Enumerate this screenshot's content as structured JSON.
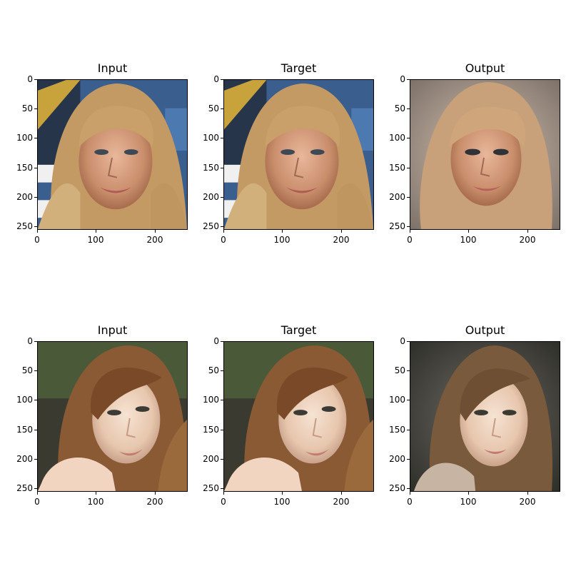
{
  "figure": {
    "rows": [
      {
        "panels": [
          {
            "title": "Input",
            "image": "blonde-woman-photo"
          },
          {
            "title": "Target",
            "image": "blonde-woman-photo"
          },
          {
            "title": "Output",
            "image": "blonde-woman-reconstruction"
          }
        ]
      },
      {
        "panels": [
          {
            "title": "Input",
            "image": "brunette-woman-photo"
          },
          {
            "title": "Target",
            "image": "brunette-woman-photo"
          },
          {
            "title": "Output",
            "image": "brunette-woman-reconstruction"
          }
        ]
      }
    ],
    "axes": {
      "y_ticks": [
        "0",
        "50",
        "100",
        "150",
        "200",
        "250"
      ],
      "x_ticks": [
        "0",
        "100",
        "200"
      ]
    }
  }
}
